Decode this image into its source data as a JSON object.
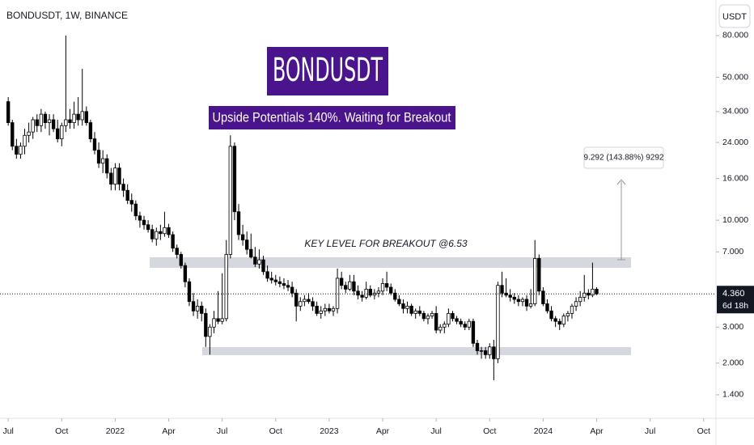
{
  "chart_data": {
    "type": "candlestick",
    "title": "BONDUSDT, 1W, BINANCE",
    "currency": "USDT",
    "log_scale": true,
    "up_color": "#ffffff",
    "down_color": "#000000",
    "edge_color": "#000000",
    "annotations": {
      "badge": "BONDUSDT",
      "subtitle": "Upside Potentials 140%. Waiting for Breakout",
      "key_level": "KEY LEVEL FOR BREAKOUT @6.53",
      "measure": "9.292 (143.88%) 9292"
    },
    "last_price": {
      "value": 4.36,
      "label": "4.360"
    },
    "countdown": "6d 18h",
    "ylim": [
      1.094,
      119.4
    ],
    "yticks": [
      {
        "value": 80,
        "label": "80.000"
      },
      {
        "value": 50,
        "label": "50.000"
      },
      {
        "value": 34,
        "label": "34.000"
      },
      {
        "value": 24,
        "label": "24.000"
      },
      {
        "value": 16,
        "label": "16.000"
      },
      {
        "value": 10,
        "label": "10.000"
      },
      {
        "value": 7,
        "label": "7.000"
      },
      {
        "value": 3,
        "label": "3.000"
      },
      {
        "value": 2,
        "label": "2.000"
      },
      {
        "value": 1.4,
        "label": "1.400"
      }
    ],
    "xlim": [
      -2,
      172
    ],
    "xticks": [
      {
        "value": 0,
        "label": "Jul"
      },
      {
        "value": 13,
        "label": "Oct"
      },
      {
        "value": 26,
        "label": "2022"
      },
      {
        "value": 39,
        "label": "Apr"
      },
      {
        "value": 52,
        "label": "Jul"
      },
      {
        "value": 65,
        "label": "Oct"
      },
      {
        "value": 78,
        "label": "2023"
      },
      {
        "value": 91,
        "label": "Apr"
      },
      {
        "value": 104,
        "label": "Jul"
      },
      {
        "value": 117,
        "label": "Oct"
      },
      {
        "value": 130,
        "label": "2024"
      },
      {
        "value": 143,
        "label": "Apr"
      },
      {
        "value": 156,
        "label": "Jul"
      },
      {
        "value": 169,
        "label": "Oct"
      }
    ],
    "ohlc": [
      [
        38,
        40,
        29,
        30
      ],
      [
        30,
        31,
        22,
        23
      ],
      [
        23,
        25,
        20,
        21
      ],
      [
        21,
        24,
        20,
        23
      ],
      [
        23,
        28,
        21,
        26
      ],
      [
        26,
        30,
        24,
        27
      ],
      [
        27,
        32,
        25,
        31
      ],
      [
        31,
        33,
        27,
        29
      ],
      [
        29,
        35,
        27,
        33
      ],
      [
        33,
        34,
        28,
        30
      ],
      [
        30,
        33,
        26,
        31
      ],
      [
        31,
        33,
        27,
        28
      ],
      [
        28,
        31,
        24,
        25
      ],
      [
        25,
        30,
        23,
        29
      ],
      [
        29,
        80,
        27,
        31
      ],
      [
        31,
        35,
        28,
        30
      ],
      [
        30,
        38,
        28,
        33
      ],
      [
        33,
        40,
        29,
        31
      ],
      [
        31,
        55,
        29,
        34
      ],
      [
        34,
        36,
        29,
        30
      ],
      [
        30,
        31,
        24,
        25
      ],
      [
        25,
        27,
        21,
        22
      ],
      [
        22,
        24,
        18,
        19
      ],
      [
        19,
        22,
        17,
        20
      ],
      [
        20,
        21,
        16,
        17
      ],
      [
        17,
        18,
        14,
        15
      ],
      [
        15,
        19,
        14,
        18
      ],
      [
        18,
        19,
        14,
        15
      ],
      [
        15,
        16,
        13,
        14
      ],
      [
        14,
        15,
        12,
        12.5
      ],
      [
        12.5,
        13.5,
        11,
        12
      ],
      [
        12,
        12.5,
        10,
        10.5
      ],
      [
        10.5,
        11,
        9.2,
        10
      ],
      [
        10,
        10.5,
        9,
        9.5
      ],
      [
        9.5,
        10,
        8.7,
        9
      ],
      [
        9,
        9.5,
        7.8,
        8.1
      ],
      [
        8.1,
        9.2,
        7.5,
        8.8
      ],
      [
        8.8,
        9.5,
        8,
        8.6
      ],
      [
        8.6,
        11,
        8.3,
        9.2
      ],
      [
        9.2,
        9.6,
        8.2,
        8.5
      ],
      [
        8.5,
        8.8,
        7,
        7.3
      ],
      [
        7.3,
        7.6,
        6.5,
        6.8
      ],
      [
        6.8,
        7,
        5.8,
        6
      ],
      [
        6,
        6.2,
        4.7,
        5
      ],
      [
        5,
        5.2,
        3.8,
        4
      ],
      [
        4,
        4.4,
        3.4,
        3.6
      ],
      [
        3.6,
        4.1,
        3.3,
        3.8
      ],
      [
        3.8,
        4,
        3.2,
        3.5
      ],
      [
        3.5,
        3.7,
        2.4,
        2.7
      ],
      [
        2.7,
        3.1,
        2.2,
        3
      ],
      [
        3,
        3.6,
        2.8,
        3.3
      ],
      [
        3.3,
        4.5,
        3.1,
        3.2
      ],
      [
        3.2,
        5.5,
        3.1,
        3.3
      ],
      [
        3.3,
        8,
        3.2,
        6.8
      ],
      [
        6.8,
        26,
        6.5,
        23
      ],
      [
        23,
        24,
        10,
        11
      ],
      [
        11,
        12,
        8,
        8.5
      ],
      [
        8.5,
        9.5,
        7.5,
        8
      ],
      [
        8,
        8.8,
        6.8,
        7.2
      ],
      [
        7.2,
        8.6,
        6.5,
        6.6
      ],
      [
        6.6,
        7.4,
        5.9,
        6.1
      ],
      [
        6.1,
        7.2,
        5.8,
        6.4
      ],
      [
        6.4,
        6.7,
        5.4,
        5.6
      ],
      [
        5.6,
        6,
        5,
        5.2
      ],
      [
        5.2,
        5.6,
        4.9,
        5.1
      ],
      [
        5.1,
        5.4,
        4.8,
        5
      ],
      [
        5,
        5.3,
        4.7,
        4.9
      ],
      [
        4.9,
        5.2,
        4.6,
        4.8
      ],
      [
        4.8,
        5.1,
        4.5,
        4.7
      ],
      [
        4.7,
        5,
        4.2,
        4.4
      ],
      [
        4.4,
        4.6,
        3.2,
        3.8
      ],
      [
        3.8,
        4.2,
        3.6,
        4
      ],
      [
        4,
        4.3,
        3.8,
        4.1
      ],
      [
        4.1,
        4.4,
        3.9,
        4
      ],
      [
        4,
        4.2,
        3.6,
        3.8
      ],
      [
        3.8,
        4,
        3.4,
        3.5
      ],
      [
        3.5,
        3.8,
        3.3,
        3.6
      ],
      [
        3.6,
        3.9,
        3.4,
        3.7
      ],
      [
        3.7,
        3.9,
        3.5,
        3.6
      ],
      [
        3.6,
        3.8,
        3.4,
        3.7
      ],
      [
        3.7,
        5.8,
        3.5,
        5.2
      ],
      [
        5.2,
        5.6,
        4.6,
        4.8
      ],
      [
        4.8,
        5,
        4.4,
        4.6
      ],
      [
        4.6,
        5.4,
        4.5,
        5
      ],
      [
        5,
        5.4,
        4.3,
        4.5
      ],
      [
        4.5,
        4.8,
        4.1,
        4.3
      ],
      [
        4.3,
        4.5,
        4,
        4.2
      ],
      [
        4.2,
        5,
        4.1,
        4.6
      ],
      [
        4.6,
        4.8,
        4.2,
        4.3
      ],
      [
        4.3,
        4.6,
        4.1,
        4.4
      ],
      [
        4.4,
        4.7,
        4.2,
        4.5
      ],
      [
        4.5,
        5.2,
        4.3,
        4.9
      ],
      [
        4.9,
        5.6,
        4.5,
        4.7
      ],
      [
        4.7,
        4.9,
        4.3,
        4.4
      ],
      [
        4.4,
        4.6,
        4,
        4.1
      ],
      [
        4.1,
        4.3,
        3.8,
        3.9
      ],
      [
        3.9,
        4.1,
        3.5,
        3.7
      ],
      [
        3.7,
        4,
        3.5,
        3.8
      ],
      [
        3.8,
        3.9,
        3.4,
        3.5
      ],
      [
        3.5,
        3.7,
        3.3,
        3.6
      ],
      [
        3.6,
        3.8,
        3.4,
        3.5
      ],
      [
        3.5,
        3.6,
        3.2,
        3.3
      ],
      [
        3.3,
        3.5,
        3.1,
        3.4
      ],
      [
        3.4,
        3.6,
        3.3,
        3.5
      ],
      [
        3.5,
        3.8,
        2.8,
        2.9
      ],
      [
        2.9,
        3.1,
        2.8,
        3
      ],
      [
        3,
        3.2,
        2.8,
        3.1
      ],
      [
        3.1,
        3.7,
        3,
        3.5
      ],
      [
        3.5,
        3.6,
        3.2,
        3.3
      ],
      [
        3.3,
        3.4,
        3.1,
        3.2
      ],
      [
        3.2,
        3.3,
        3,
        3.1
      ],
      [
        3.1,
        3.2,
        2.9,
        3
      ],
      [
        3,
        3.3,
        2.9,
        3.2
      ],
      [
        3.2,
        3.3,
        2.4,
        2.5
      ],
      [
        2.5,
        2.6,
        2.2,
        2.3
      ],
      [
        2.3,
        2.4,
        2.1,
        2.3
      ],
      [
        2.3,
        2.4,
        2.1,
        2.2
      ],
      [
        2.2,
        2.5,
        2.1,
        2.4
      ],
      [
        2.4,
        2.6,
        1.65,
        2.1
      ],
      [
        2.1,
        5,
        2,
        4.8
      ],
      [
        4.8,
        5.6,
        4.2,
        4.4
      ],
      [
        4.4,
        5.2,
        4.2,
        4.3
      ],
      [
        4.3,
        4.6,
        4,
        4.2
      ],
      [
        4.2,
        4.4,
        3.9,
        4.1
      ],
      [
        4.1,
        4.3,
        3.8,
        4
      ],
      [
        4,
        4.2,
        3.8,
        4.1
      ],
      [
        4.1,
        4.3,
        3.6,
        3.8
      ],
      [
        3.8,
        4.6,
        3.7,
        3.9
      ],
      [
        3.9,
        8,
        3.8,
        6.5
      ],
      [
        6.5,
        6.8,
        4.3,
        4.5
      ],
      [
        4.5,
        4.7,
        3.8,
        3.9
      ],
      [
        3.9,
        4.1,
        3.5,
        3.6
      ],
      [
        3.6,
        3.8,
        3.2,
        3.3
      ],
      [
        3.3,
        3.4,
        3,
        3.2
      ],
      [
        3.2,
        3.3,
        2.9,
        3.1
      ],
      [
        3.1,
        3.5,
        3,
        3.4
      ],
      [
        3.4,
        3.6,
        3.2,
        3.5
      ],
      [
        3.5,
        3.9,
        3.3,
        3.8
      ],
      [
        3.8,
        4.2,
        3.6,
        4
      ],
      [
        4,
        4.5,
        3.8,
        4.2
      ],
      [
        4.2,
        5.4,
        4,
        4.4
      ],
      [
        4.4,
        4.6,
        4.1,
        4.3
      ],
      [
        4.3,
        6.2,
        4.2,
        4.6
      ],
      [
        4.6,
        4.7,
        4.3,
        4.36
      ]
    ]
  }
}
